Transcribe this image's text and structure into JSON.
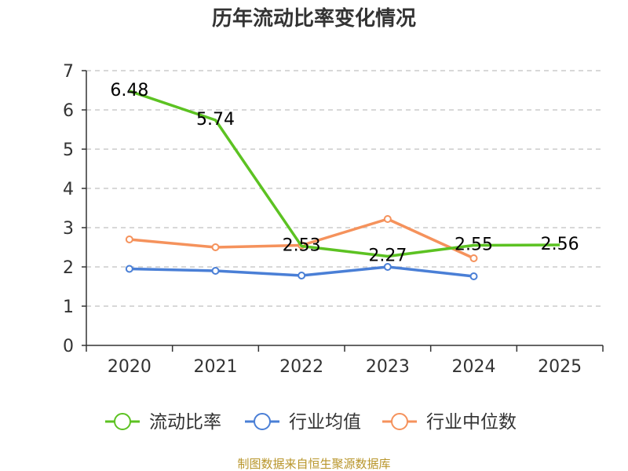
{
  "chart_data": {
    "type": "line",
    "title": "历年流动比率变化情况",
    "categories": [
      "2020",
      "2021",
      "2022",
      "2023",
      "2024",
      "2025"
    ],
    "ylim": [
      0,
      7
    ],
    "yticks": [
      "0",
      "1",
      "2",
      "3",
      "4",
      "5",
      "6",
      "7"
    ],
    "grid": true,
    "legend_position": "bottom",
    "series": [
      {
        "name": "流动比率",
        "color": "#5cc222",
        "values": [
          6.48,
          5.74,
          2.53,
          2.27,
          2.55,
          2.56
        ],
        "labels": [
          "6.48",
          "5.74",
          "2.53",
          "2.27",
          "2.55",
          "2.56"
        ],
        "show_labels": true
      },
      {
        "name": "行业均值",
        "color": "#4a7fd6",
        "values": [
          1.95,
          1.9,
          1.78,
          2.0,
          1.76,
          null
        ],
        "show_labels": false
      },
      {
        "name": "行业中位数",
        "color": "#f5925c",
        "values": [
          2.7,
          2.5,
          2.55,
          3.22,
          2.22,
          null
        ],
        "show_labels": false
      }
    ]
  },
  "source": "制图数据来自恒生聚源数据库"
}
